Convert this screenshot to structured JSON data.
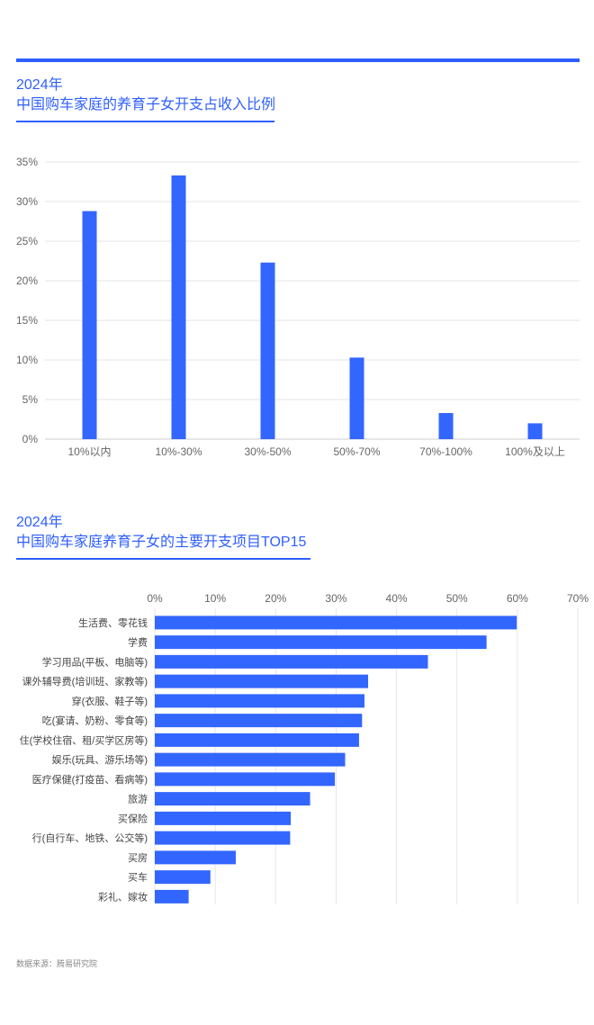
{
  "source": "数据来源：腾易研究院",
  "colors": {
    "accent": "#2f5fff",
    "bar": "#3366ff",
    "grid": "#e6e6e6",
    "axis_text": "#666666"
  },
  "chart_data": [
    {
      "type": "bar",
      "orientation": "vertical",
      "title_year": "2024年",
      "title": "中国购车家庭的养育子女开支占收入比例",
      "categories": [
        "10%以内",
        "10%-30%",
        "30%-50%",
        "50%-70%",
        "70%-100%",
        "100%及以上"
      ],
      "values": [
        28.8,
        33.3,
        22.3,
        10.3,
        3.3,
        2.0
      ],
      "ylim": [
        0,
        35
      ],
      "yticks": [
        "0%",
        "5%",
        "10%",
        "15%",
        "20%",
        "25%",
        "30%",
        "35%"
      ],
      "xlabel": "",
      "ylabel": "",
      "grid": true
    },
    {
      "type": "bar",
      "orientation": "horizontal",
      "title_year": "2024年",
      "title": "中国购车家庭养育子女的主要开支项目TOP15",
      "categories": [
        "生活费、零花钱",
        "学费",
        "学习用品(平板、电脑等)",
        "课外辅导费(培训班、家教等)",
        "穿(衣服、鞋子等)",
        "吃(宴请、奶粉、零食等)",
        "住(学校住宿、租/买学区房等)",
        "娱乐(玩具、游乐场等)",
        "医疗保健(打疫苗、看病等)",
        "旅游",
        "买保险",
        "行(自行车、地铁、公交等)",
        "买房",
        "买车",
        "彩礼、嫁妆"
      ],
      "values": [
        59.9,
        54.9,
        45.2,
        35.3,
        34.7,
        34.3,
        33.8,
        31.5,
        29.8,
        25.7,
        22.5,
        22.4,
        13.4,
        9.2,
        5.6
      ],
      "xlim": [
        0,
        70
      ],
      "xticks": [
        "0%",
        "10%",
        "20%",
        "30%",
        "40%",
        "50%",
        "60%",
        "70%"
      ],
      "xlabel": "",
      "ylabel": "",
      "grid": true
    }
  ]
}
